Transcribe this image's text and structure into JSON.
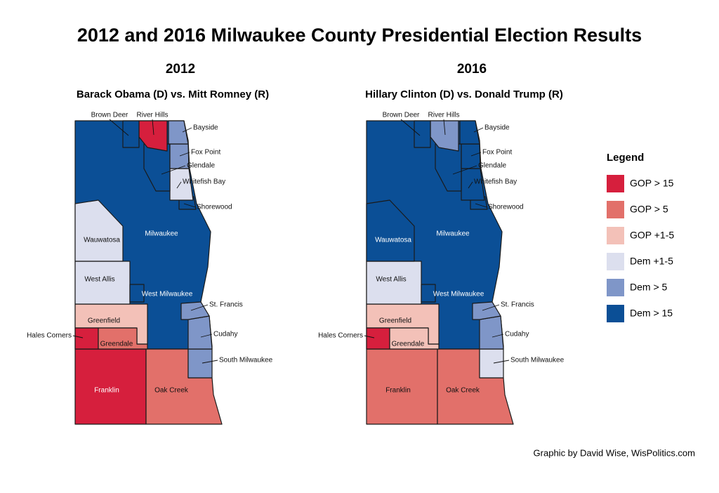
{
  "title": "2012 and 2016 Milwaukee County Presidential Election Results",
  "maps": [
    {
      "year": "2012",
      "subtitle": "Barack Obama (D) vs. Mitt Romney (R)",
      "regions": [
        {
          "name": "Milwaukee",
          "color": "#0b4f96"
        },
        {
          "name": "Franklin",
          "color": "#d61f3d"
        },
        {
          "name": "Oak Creek",
          "color": "#e2706a"
        },
        {
          "name": "South Milwaukee",
          "color": "#7f96c8"
        },
        {
          "name": "Cudahy",
          "color": "#7f96c8"
        },
        {
          "name": "St. Francis",
          "color": "#7f96c8"
        },
        {
          "name": "Greenfield",
          "color": "#f3c1b8"
        },
        {
          "name": "Hales Corners",
          "color": "#d61f3d"
        },
        {
          "name": "Greendale",
          "color": "#e2706a"
        },
        {
          "name": "West Allis",
          "color": "#dcdfee"
        },
        {
          "name": "Wauwatosa",
          "color": "#dcdfee"
        },
        {
          "name": "West Milwaukee",
          "color": "#0b4f96"
        },
        {
          "name": "Shorewood",
          "color": "#0b4f96"
        },
        {
          "name": "Whitefish Bay",
          "color": "#dcdfee"
        },
        {
          "name": "Glendale",
          "color": "#0b4f96"
        },
        {
          "name": "Fox Point",
          "color": "#7f96c8"
        },
        {
          "name": "Bayside",
          "color": "#7f96c8"
        },
        {
          "name": "River Hills",
          "color": "#d61f3d"
        },
        {
          "name": "Brown Deer",
          "color": "#0b4f96"
        }
      ]
    },
    {
      "year": "2016",
      "subtitle": "Hillary Clinton (D) vs. Donald Trump (R)",
      "regions": [
        {
          "name": "Milwaukee",
          "color": "#0b4f96"
        },
        {
          "name": "Franklin",
          "color": "#e2706a"
        },
        {
          "name": "Oak Creek",
          "color": "#e2706a"
        },
        {
          "name": "South Milwaukee",
          "color": "#dcdfee"
        },
        {
          "name": "Cudahy",
          "color": "#7f96c8"
        },
        {
          "name": "St. Francis",
          "color": "#7f96c8"
        },
        {
          "name": "Greenfield",
          "color": "#f3c1b8"
        },
        {
          "name": "Hales Corners",
          "color": "#d61f3d"
        },
        {
          "name": "Greendale",
          "color": "#f3c1b8"
        },
        {
          "name": "West Allis",
          "color": "#dcdfee"
        },
        {
          "name": "Wauwatosa",
          "color": "#0b4f96"
        },
        {
          "name": "West Milwaukee",
          "color": "#0b4f96"
        },
        {
          "name": "Shorewood",
          "color": "#0b4f96"
        },
        {
          "name": "Whitefish Bay",
          "color": "#0b4f96"
        },
        {
          "name": "Glendale",
          "color": "#0b4f96"
        },
        {
          "name": "Fox Point",
          "color": "#0b4f96"
        },
        {
          "name": "Bayside",
          "color": "#0b4f96"
        },
        {
          "name": "River Hills",
          "color": "#7f96c8"
        },
        {
          "name": "Brown Deer",
          "color": "#0b4f96"
        }
      ]
    }
  ],
  "legend": {
    "title": "Legend",
    "items": [
      {
        "label": "GOP > 15",
        "color": "#d61f3d"
      },
      {
        "label": "GOP > 5",
        "color": "#e2706a"
      },
      {
        "label": "GOP +1-5",
        "color": "#f3c1b8"
      },
      {
        "label": "Dem +1-5",
        "color": "#dcdfee"
      },
      {
        "label": "Dem > 5",
        "color": "#7f96c8"
      },
      {
        "label": "Dem > 15",
        "color": "#0b4f96"
      }
    ]
  },
  "credit": "Graphic by David Wise, WisPolitics.com"
}
